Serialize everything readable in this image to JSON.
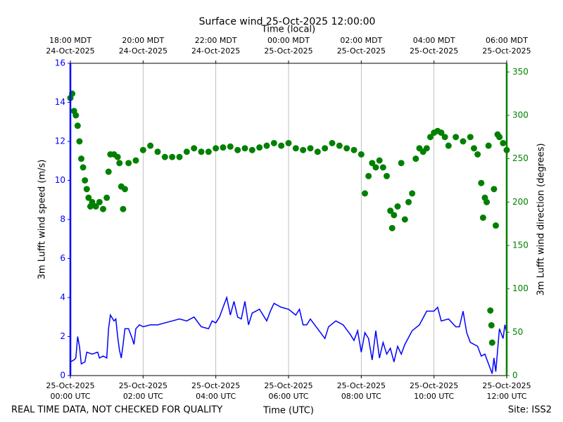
{
  "chart_data": {
    "type": "combo",
    "title": "Surface wind 25-Oct-2025 12:00:00",
    "x2label": "Time (local)",
    "xlabel": "Time (UTC)",
    "ylabel": "3m Lufft wind speed (m/s)",
    "y2label": "3m Lufft wind direction (degrees)",
    "footer_left": "REAL TIME DATA, NOT CHECKED FOR QUALITY",
    "footer_right": "Site: ISS2",
    "xlim": [
      0,
      12
    ],
    "xticks": [
      {
        "value": 0,
        "label": "25-Oct-2025\n00:00 UTC"
      },
      {
        "value": 2,
        "label": "25-Oct-2025\n02:00 UTC"
      },
      {
        "value": 4,
        "label": "25-Oct-2025\n04:00 UTC"
      },
      {
        "value": 6,
        "label": "25-Oct-2025\n06:00 UTC"
      },
      {
        "value": 8,
        "label": "25-Oct-2025\n08:00 UTC"
      },
      {
        "value": 10,
        "label": "25-Oct-2025\n10:00 UTC"
      },
      {
        "value": 12,
        "label": "25-Oct-2025\n12:00 UTC"
      }
    ],
    "x2ticks": [
      {
        "value": 0,
        "label": "18:00 MDT\n24-Oct-2025"
      },
      {
        "value": 2,
        "label": "20:00 MDT\n24-Oct-2025"
      },
      {
        "value": 4,
        "label": "22:00 MDT\n24-Oct-2025"
      },
      {
        "value": 6,
        "label": "00:00 MDT\n25-Oct-2025"
      },
      {
        "value": 8,
        "label": "02:00 MDT\n25-Oct-2025"
      },
      {
        "value": 10,
        "label": "04:00 MDT\n25-Oct-2025"
      },
      {
        "value": 12,
        "label": "06:00 MDT\n25-Oct-2025"
      }
    ],
    "ylim": [
      0,
      16
    ],
    "yticks": [
      0,
      2,
      4,
      6,
      8,
      10,
      12,
      14,
      16
    ],
    "y2lim": [
      0,
      360
    ],
    "y2ticks": [
      0,
      50,
      100,
      150,
      200,
      250,
      300,
      350
    ],
    "grid": "x",
    "y_color": "#0000ff",
    "y2_color": "#008000",
    "series": [
      {
        "type": "line",
        "color": "#0000ff",
        "x": [
          0.0,
          0.1,
          0.15,
          0.2,
          0.25,
          0.3,
          0.4,
          0.45,
          0.6,
          0.75,
          0.8,
          0.9,
          1.0,
          1.05,
          1.1,
          1.2,
          1.25,
          1.3,
          1.35,
          1.4,
          1.45,
          1.5,
          1.6,
          1.7,
          1.75,
          1.8,
          1.9,
          2.0,
          2.2,
          2.4,
          2.6,
          2.8,
          3.0,
          3.2,
          3.4,
          3.6,
          3.8,
          3.9,
          4.0,
          4.1,
          4.2,
          4.3,
          4.4,
          4.5,
          4.6,
          4.7,
          4.8,
          4.9,
          5.0,
          5.2,
          5.4,
          5.5,
          5.6,
          5.8,
          6.0,
          6.2,
          6.3,
          6.4,
          6.5,
          6.6,
          6.8,
          7.0,
          7.1,
          7.3,
          7.5,
          7.7,
          7.8,
          7.9,
          8.0,
          8.1,
          8.2,
          8.3,
          8.4,
          8.5,
          8.6,
          8.7,
          8.8,
          8.9,
          9.0,
          9.1,
          9.2,
          9.4,
          9.6,
          9.8,
          10.0,
          10.1,
          10.2,
          10.4,
          10.6,
          10.7,
          10.8,
          10.9,
          11.0,
          11.2,
          11.3,
          11.4,
          11.5,
          11.6,
          11.65,
          11.7,
          11.8,
          11.9,
          11.95,
          12.0
        ],
        "values": [
          0.7,
          0.8,
          0.9,
          2.0,
          1.5,
          0.6,
          0.7,
          1.2,
          1.1,
          1.2,
          0.9,
          1.0,
          0.9,
          2.4,
          3.1,
          2.8,
          2.9,
          2.0,
          1.3,
          0.9,
          1.6,
          2.4,
          2.4,
          1.9,
          1.6,
          2.4,
          2.6,
          2.5,
          2.6,
          2.6,
          2.7,
          2.8,
          2.9,
          2.8,
          3.0,
          2.5,
          2.4,
          2.8,
          2.7,
          3.0,
          3.5,
          4.0,
          3.1,
          3.8,
          3.0,
          2.9,
          3.8,
          2.6,
          3.2,
          3.4,
          2.8,
          3.3,
          3.7,
          3.5,
          3.4,
          3.1,
          3.4,
          2.6,
          2.6,
          2.9,
          2.4,
          1.9,
          2.5,
          2.8,
          2.6,
          2.1,
          1.8,
          2.3,
          1.2,
          2.2,
          1.9,
          0.8,
          2.3,
          0.9,
          1.7,
          1.1,
          1.4,
          0.7,
          1.5,
          1.1,
          1.6,
          2.3,
          2.6,
          3.3,
          3.3,
          3.5,
          2.8,
          2.9,
          2.5,
          2.5,
          3.3,
          2.2,
          1.7,
          1.5,
          1.0,
          1.1,
          0.6,
          0.1,
          0.9,
          0.2,
          2.4,
          1.9,
          2.6,
          2.2
        ]
      },
      {
        "type": "scatter",
        "axis": "y2",
        "color": "#008000",
        "x": [
          0.0,
          0.05,
          0.1,
          0.15,
          0.2,
          0.25,
          0.3,
          0.35,
          0.4,
          0.45,
          0.5,
          0.55,
          0.6,
          0.7,
          0.8,
          0.9,
          1.0,
          1.05,
          1.1,
          1.2,
          1.3,
          1.35,
          1.4,
          1.45,
          1.5,
          1.6,
          1.8,
          2.0,
          2.2,
          2.4,
          2.6,
          2.8,
          3.0,
          3.2,
          3.4,
          3.6,
          3.8,
          4.0,
          4.2,
          4.4,
          4.6,
          4.8,
          5.0,
          5.2,
          5.4,
          5.6,
          5.8,
          6.0,
          6.2,
          6.4,
          6.6,
          6.8,
          7.0,
          7.2,
          7.4,
          7.6,
          7.8,
          8.0,
          8.1,
          8.2,
          8.3,
          8.4,
          8.5,
          8.6,
          8.7,
          8.8,
          8.85,
          8.9,
          9.0,
          9.1,
          9.2,
          9.3,
          9.4,
          9.5,
          9.6,
          9.7,
          9.8,
          9.9,
          10.0,
          10.1,
          10.2,
          10.3,
          10.4,
          10.6,
          10.8,
          11.0,
          11.1,
          11.2,
          11.3,
          11.35,
          11.4,
          11.45,
          11.5,
          11.55,
          11.58,
          11.6,
          11.65,
          11.7,
          11.75,
          11.8,
          11.9,
          12.0
        ],
        "values": [
          320,
          325,
          305,
          300,
          288,
          270,
          250,
          240,
          225,
          215,
          205,
          195,
          200,
          195,
          200,
          192,
          205,
          235,
          255,
          255,
          252,
          245,
          218,
          192,
          215,
          245,
          248,
          260,
          265,
          258,
          252,
          252,
          252,
          258,
          262,
          258,
          258,
          262,
          263,
          264,
          260,
          262,
          260,
          263,
          265,
          268,
          265,
          268,
          262,
          260,
          262,
          258,
          262,
          268,
          265,
          262,
          260,
          255,
          210,
          230,
          245,
          240,
          248,
          240,
          230,
          190,
          170,
          185,
          195,
          245,
          180,
          200,
          210,
          250,
          262,
          258,
          262,
          275,
          280,
          282,
          280,
          275,
          265,
          275,
          270,
          275,
          262,
          255,
          222,
          182,
          205,
          200,
          265,
          75,
          58,
          38,
          215,
          173,
          278,
          275,
          268,
          260
        ]
      }
    ]
  }
}
